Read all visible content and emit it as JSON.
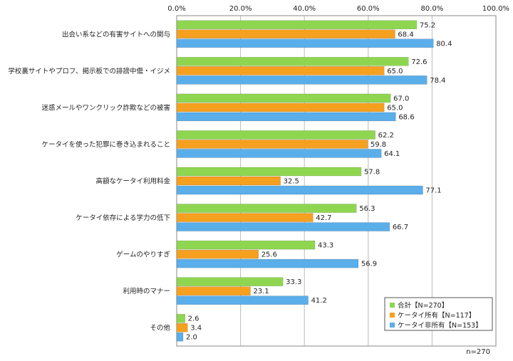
{
  "chart_data": {
    "type": "bar",
    "orientation": "horizontal",
    "note": "n=270",
    "xlim": [
      0,
      100
    ],
    "tick_labels": [
      "0.0%",
      "20.0%",
      "40.0%",
      "60.0%",
      "80.0%",
      "100.0%"
    ],
    "categories": [
      "出会い系などの有害サイトへの関与",
      "学校裏サイトやプロフ、掲示板での誹謗中傷・イジメ",
      "迷惑メールやワンクリック詐欺などの被害",
      "ケータイを使った犯罪に巻き込まれること",
      "高額なケータイ利用料金",
      "ケータイ依存による学力の低下",
      "ゲームのやりすぎ",
      "利用時のマナー",
      "その他"
    ],
    "series": [
      {
        "name": "合計【N=270】",
        "color": "#8fd650",
        "values": [
          75.2,
          72.6,
          67.0,
          62.2,
          57.8,
          56.3,
          43.3,
          33.3,
          2.6
        ],
        "value_labels": [
          "75.2",
          "72.6",
          "67.0",
          "62.2",
          "57.8",
          "56.3",
          "43.3",
          "33.3",
          "2.6"
        ]
      },
      {
        "name": "ケータイ所有【N=117】",
        "color": "#f5a01f",
        "values": [
          68.4,
          65.0,
          65.0,
          59.8,
          32.5,
          42.7,
          25.6,
          23.1,
          3.4
        ],
        "value_labels": [
          "68.4",
          "65.0",
          "65.0",
          "59.8",
          "32.5",
          "42.7",
          "25.6",
          "23.1",
          "3.4"
        ]
      },
      {
        "name": "ケータイ非所有【N=153】",
        "color": "#5aaeea",
        "values": [
          80.4,
          78.4,
          68.6,
          64.1,
          77.1,
          66.7,
          56.9,
          41.2,
          2.0
        ],
        "value_labels": [
          "80.4",
          "78.4",
          "68.6",
          "64.1",
          "77.1",
          "66.7",
          "56.9",
          "41.2",
          "2.0"
        ]
      }
    ],
    "legend_position": "bottom-right",
    "grid": true
  }
}
